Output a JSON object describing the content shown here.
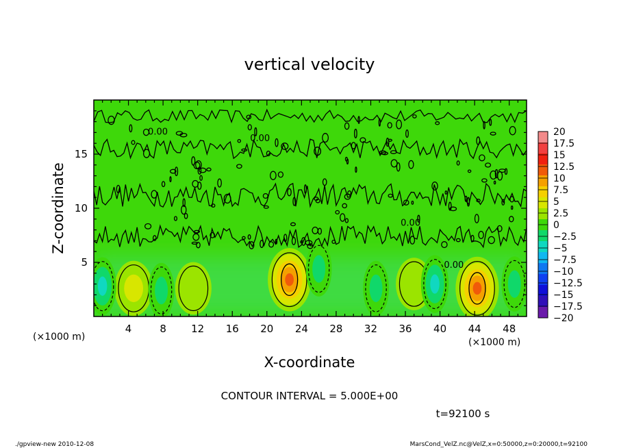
{
  "chart_data": {
    "type": "heatmap",
    "title": "vertical velocity",
    "xlabel": "X-coordinate",
    "ylabel": "Z-coordinate",
    "x_unit_label": "(×1000 m)",
    "x_unit_label_right": "(×1000 m)",
    "xlim": [
      0,
      50
    ],
    "ylim": [
      0,
      20
    ],
    "x_ticks": [
      4,
      8,
      12,
      16,
      20,
      24,
      28,
      32,
      36,
      40,
      44,
      48
    ],
    "y_ticks": [
      5,
      10,
      15
    ],
    "contour_label": "0.00",
    "contour_interval_text": "CONTOUR INTERVAL = 5.000E+00",
    "time_text": "t=92100 s",
    "footer_left": "./gpview-new   2010-12-08",
    "footer_right": "MarsCond_VelZ.nc@VelZ,x=0:50000,z=0:20000,t=92100",
    "colorbar": {
      "labels": [
        "20",
        "17.5",
        "15",
        "12.5",
        "10",
        "7.5",
        "5",
        "2.5",
        "0",
        "−2.5",
        "−5",
        "−7.5",
        "−10",
        "−12.5",
        "−15",
        "−17.5",
        "−20"
      ],
      "levels": [
        20,
        17.5,
        15,
        12.5,
        10,
        7.5,
        5,
        2.5,
        0,
        -2.5,
        -5,
        -7.5,
        -10,
        -12.5,
        -15,
        -17.5,
        -20
      ],
      "colors": [
        "#f28a8a",
        "#f24040",
        "#f02010",
        "#f05a0a",
        "#f5a000",
        "#f5d000",
        "#d8e600",
        "#9be400",
        "#3ed80a",
        "#10d86a",
        "#10d8c0",
        "#10b8f0",
        "#1078f0",
        "#1040f0",
        "#1010d8",
        "#3010b8",
        "#6a1aaa"
      ]
    },
    "features": [
      {
        "type": "updraft",
        "x": 4.6,
        "z": 2.6,
        "peak": 5
      },
      {
        "type": "updraft",
        "x": 22.6,
        "z": 3.4,
        "peak": 12.5
      },
      {
        "type": "updraft",
        "x": 44.3,
        "z": 2.6,
        "peak": 12.5
      },
      {
        "type": "updraft",
        "x": 11.5,
        "z": 2.6,
        "peak": 2.5
      },
      {
        "type": "updraft",
        "x": 37.0,
        "z": 3.0,
        "peak": 2.5
      },
      {
        "type": "downdraft",
        "x": 1.0,
        "z": 2.8,
        "peak": -7.5
      },
      {
        "type": "downdraft",
        "x": 7.8,
        "z": 2.4,
        "peak": -5
      },
      {
        "type": "downdraft",
        "x": 39.4,
        "z": 3.0,
        "peak": -7.5
      },
      {
        "type": "downdraft",
        "x": 32.6,
        "z": 2.6,
        "peak": -5
      },
      {
        "type": "downdraft",
        "x": 26.0,
        "z": 4.4,
        "peak": -5
      },
      {
        "type": "downdraft",
        "x": 48.6,
        "z": 3.0,
        "peak": -5
      }
    ]
  }
}
